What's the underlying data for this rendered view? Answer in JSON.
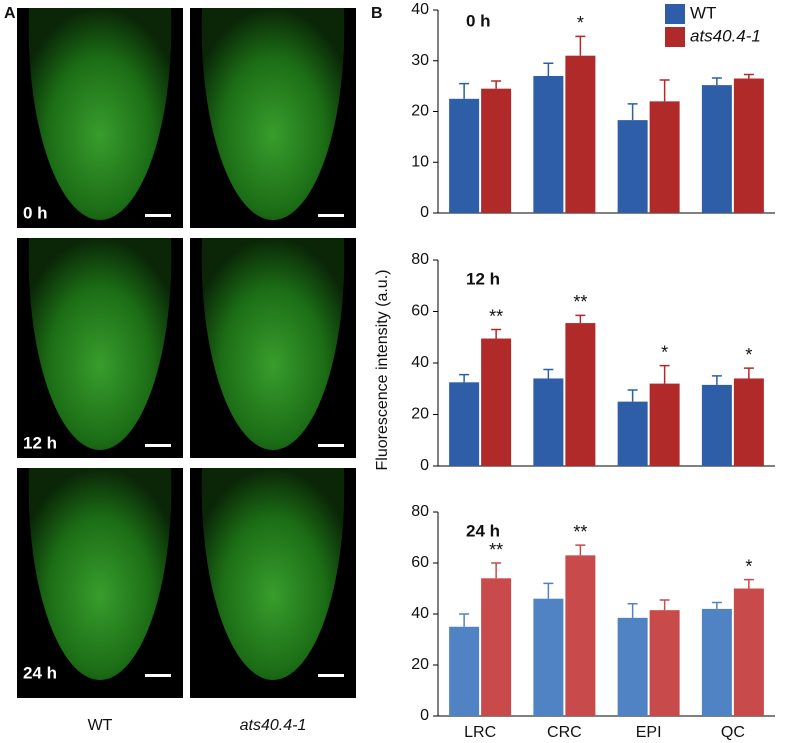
{
  "panel_a": {
    "label": "A",
    "rows": [
      "0 h",
      "12 h",
      "24 h"
    ],
    "columns": [
      "WT",
      "ats40.4-1"
    ]
  },
  "panel_b": {
    "label": "B",
    "ylabel": "Fluorescence intensity (a.u.)"
  },
  "chart_data": [
    {
      "type": "bar",
      "title": "0 h",
      "categories": [
        null,
        null,
        null,
        null
      ],
      "ylim": [
        0,
        40
      ],
      "yticks": [
        0,
        10,
        20,
        30,
        40
      ],
      "series": [
        {
          "name": "WT",
          "color": "#2e5ea8",
          "values": [
            22.5,
            27,
            18.3,
            25.2
          ],
          "errors": [
            3,
            2.5,
            3.2,
            1.4
          ],
          "significance": [
            null,
            null,
            null,
            null
          ]
        },
        {
          "name": "ats40.4-1",
          "color": "#b02a2a",
          "values": [
            24.5,
            31,
            22,
            26.5
          ],
          "errors": [
            1.5,
            3.8,
            4.2,
            0.8
          ],
          "significance": [
            null,
            "*",
            null,
            null
          ]
        }
      ]
    },
    {
      "type": "bar",
      "title": "12 h",
      "categories": [
        null,
        null,
        null,
        null
      ],
      "ylim": [
        0,
        80
      ],
      "yticks": [
        0,
        20,
        40,
        60,
        80
      ],
      "series": [
        {
          "color": "#2e5ea8",
          "values": [
            32.5,
            34,
            25,
            31.5
          ],
          "errors": [
            3,
            3.5,
            4.5,
            3.5
          ],
          "significance": [
            null,
            null,
            null,
            null
          ]
        },
        {
          "color": "#b02a2a",
          "values": [
            49.5,
            55.5,
            32,
            34
          ],
          "errors": [
            3.5,
            3,
            7,
            4
          ],
          "significance": [
            "**",
            "**",
            "*",
            "*"
          ]
        }
      ]
    },
    {
      "type": "bar",
      "title": "24 h",
      "categories": [
        "LRC",
        "CRC",
        "EPI",
        "QC"
      ],
      "ylim": [
        0,
        80
      ],
      "yticks": [
        0,
        20,
        40,
        60,
        80
      ],
      "series": [
        {
          "color": "#4f83c4",
          "values": [
            35,
            46,
            38.5,
            42
          ],
          "errors": [
            5,
            6,
            5.5,
            2.5
          ],
          "significance": [
            null,
            null,
            null,
            null
          ]
        },
        {
          "color": "#c94a4a",
          "values": [
            54,
            63,
            41.5,
            50
          ],
          "errors": [
            6,
            4,
            4,
            3.5
          ],
          "significance": [
            "**",
            "**",
            null,
            "*"
          ]
        }
      ]
    }
  ]
}
